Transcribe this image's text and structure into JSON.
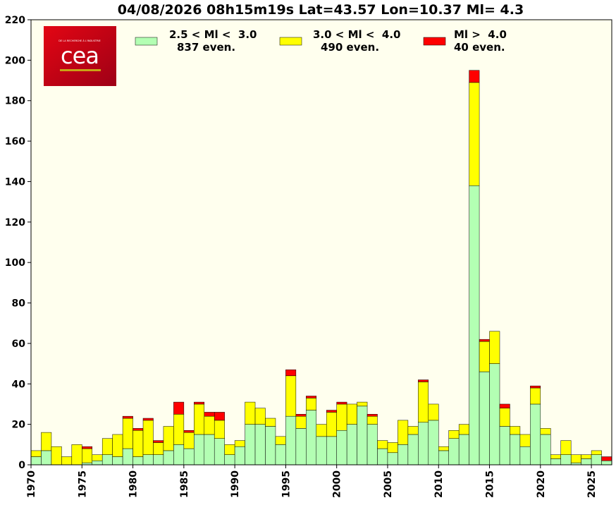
{
  "chart_data": {
    "type": "bar",
    "stacked": true,
    "title": "04/08/2026 08h15m19s Lat=43.57 Lon=10.37 Ml= 4.3",
    "years": [
      1970,
      1971,
      1972,
      1973,
      1974,
      1975,
      1976,
      1977,
      1978,
      1979,
      1980,
      1981,
      1982,
      1983,
      1984,
      1985,
      1986,
      1987,
      1988,
      1989,
      1990,
      1991,
      1992,
      1993,
      1994,
      1995,
      1996,
      1997,
      1998,
      1999,
      2000,
      2001,
      2002,
      2003,
      2004,
      2005,
      2006,
      2007,
      2008,
      2009,
      2010,
      2011,
      2012,
      2013,
      2014,
      2015,
      2016,
      2017,
      2018,
      2019,
      2020,
      2021,
      2022,
      2023,
      2024,
      2025,
      2026
    ],
    "x_tick_labels": [
      "1970",
      "1975",
      "1980",
      "1985",
      "1990",
      "1995",
      "2000",
      "2005",
      "2010",
      "2015",
      "2020",
      "2025"
    ],
    "ylim": [
      0,
      220
    ],
    "y_ticks": [
      0,
      20,
      40,
      60,
      80,
      100,
      120,
      140,
      160,
      180,
      200,
      220
    ],
    "background": "#ffffee",
    "series": [
      {
        "name": "2.5 < Ml <  3.0",
        "count_label": "837 even.",
        "color": "#b3ffb3",
        "values": [
          4,
          7,
          0,
          0,
          0,
          1,
          2,
          5,
          4,
          8,
          4,
          5,
          5,
          7,
          10,
          8,
          15,
          15,
          13,
          5,
          9,
          20,
          20,
          19,
          10,
          24,
          18,
          27,
          14,
          14,
          17,
          20,
          29,
          20,
          8,
          6,
          10,
          15,
          21,
          22,
          7,
          13,
          15,
          138,
          46,
          50,
          19,
          15,
          9,
          30,
          15,
          3,
          5,
          1,
          3,
          5,
          2
        ]
      },
      {
        "name": "3.0 < Ml <  4.0",
        "count_label": "490 even.",
        "color": "#ffff00",
        "values": [
          3,
          9,
          9,
          4,
          10,
          7,
          3,
          8,
          11,
          15,
          13,
          17,
          6,
          12,
          15,
          8,
          15,
          9,
          9,
          5,
          3,
          11,
          8,
          4,
          4,
          20,
          6,
          6,
          6,
          12,
          13,
          10,
          2,
          4,
          4,
          5,
          12,
          4,
          20,
          8,
          2,
          4,
          5,
          51,
          15,
          16,
          9,
          4,
          6,
          8,
          3,
          2,
          7,
          4,
          2,
          2,
          0
        ]
      },
      {
        "name": "Ml >  4.0",
        "count_label": "40 even.",
        "color": "#ff0000",
        "values": [
          0,
          0,
          0,
          0,
          0,
          1,
          0,
          0,
          0,
          1,
          1,
          1,
          1,
          0,
          6,
          1,
          1,
          2,
          4,
          0,
          0,
          0,
          0,
          0,
          0,
          3,
          1,
          1,
          0,
          1,
          1,
          0,
          0,
          1,
          0,
          0,
          0,
          0,
          1,
          0,
          0,
          0,
          0,
          6,
          1,
          0,
          2,
          0,
          0,
          1,
          0,
          0,
          0,
          0,
          0,
          0,
          2
        ]
      }
    ],
    "legend_position": "top"
  },
  "logo": {
    "name": "cea",
    "tagline": "DE LA RECHERCHE À L'INDUSTRIE",
    "colors": [
      "#e30613",
      "#a3001b"
    ]
  }
}
